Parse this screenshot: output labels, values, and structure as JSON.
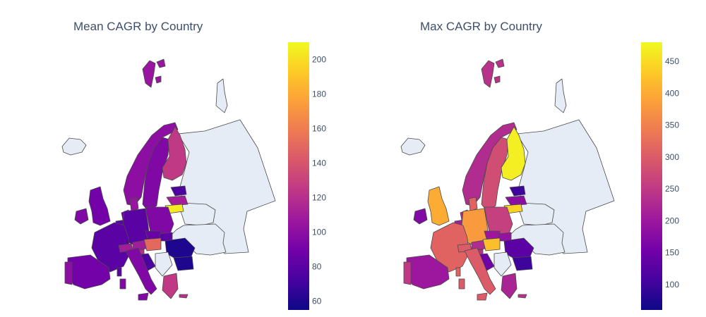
{
  "maps": [
    {
      "id": "mean",
      "title": "Mean CAGR by Country",
      "colorbar": {
        "min": 55,
        "max": 210,
        "ticks": [
          60,
          80,
          100,
          120,
          140,
          160,
          180,
          200
        ]
      }
    },
    {
      "id": "max",
      "title": "Max CAGR by Country",
      "colorbar": {
        "min": 60,
        "max": 480,
        "ticks": [
          100,
          150,
          200,
          250,
          300,
          350,
          400,
          450
        ]
      }
    }
  ],
  "no_data_color": "#e5ecf6",
  "colorscale": [
    "#0d0887",
    "#46039f",
    "#7201a8",
    "#9c179e",
    "#bd3786",
    "#d8576b",
    "#ed7953",
    "#fb9f3a",
    "#fdca26",
    "#f0f921"
  ],
  "countries": [
    {
      "name": "Russia",
      "mean": null,
      "max": null
    },
    {
      "name": "Belarus",
      "mean": null,
      "max": null
    },
    {
      "name": "Ukraine",
      "mean": null,
      "max": null
    },
    {
      "name": "Iceland",
      "mean": null,
      "max": null
    },
    {
      "name": "Svalbard",
      "mean": 105,
      "max": 240
    },
    {
      "name": "Norway",
      "mean": 100,
      "max": 230
    },
    {
      "name": "Sweden",
      "mean": 95,
      "max": 280
    },
    {
      "name": "Finland",
      "mean": 125,
      "max": 470
    },
    {
      "name": "Estonia",
      "mean": 75,
      "max": 100
    },
    {
      "name": "Latvia",
      "mean": 110,
      "max": 180
    },
    {
      "name": "Lithuania",
      "mean": 205,
      "max": 440
    },
    {
      "name": "Denmark",
      "mean": 105,
      "max": 310
    },
    {
      "name": "Ireland",
      "mean": 95,
      "max": 170
    },
    {
      "name": "United Kingdom",
      "mean": 90,
      "max": 400
    },
    {
      "name": "Netherlands",
      "mean": 90,
      "max": 230
    },
    {
      "name": "Belgium",
      "mean": 80,
      "max": 210
    },
    {
      "name": "Germany",
      "mean": 80,
      "max": 380
    },
    {
      "name": "Poland",
      "mean": 95,
      "max": 260
    },
    {
      "name": "France",
      "mean": 80,
      "max": 310
    },
    {
      "name": "Switzerland",
      "mean": 110,
      "max": 300
    },
    {
      "name": "Austria",
      "mean": 110,
      "max": 230
    },
    {
      "name": "Czechia",
      "mean": 85,
      "max": 200
    },
    {
      "name": "Slovakia",
      "mean": 80,
      "max": 190
    },
    {
      "name": "Hungary",
      "mean": 150,
      "max": 420
    },
    {
      "name": "Slovenia",
      "mean": 120,
      "max": 240
    },
    {
      "name": "Croatia",
      "mean": 75,
      "max": 150
    },
    {
      "name": "Romania",
      "mean": 60,
      "max": 130
    },
    {
      "name": "Bulgaria",
      "mean": 60,
      "max": 100
    },
    {
      "name": "Serbia",
      "mean": null,
      "max": null
    },
    {
      "name": "Greece",
      "mean": 125,
      "max": 220
    },
    {
      "name": "Italy",
      "mean": 95,
      "max": 300
    },
    {
      "name": "Spain",
      "mean": 90,
      "max": 200
    },
    {
      "name": "Portugal",
      "mean": 100,
      "max": 250
    },
    {
      "name": "Corsica",
      "mean": 80,
      "max": 310
    },
    {
      "name": "Sardinia",
      "mean": 95,
      "max": 300
    },
    {
      "name": "Sicily",
      "mean": 95,
      "max": 300
    },
    {
      "name": "Cyprus",
      "mean": 120,
      "max": 240
    }
  ]
}
